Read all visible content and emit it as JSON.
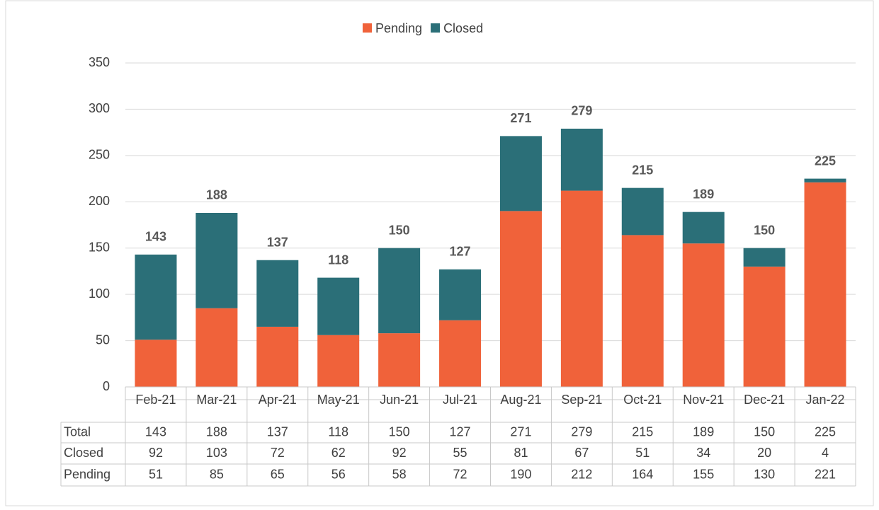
{
  "chart_data": {
    "type": "bar",
    "stacked": true,
    "categories": [
      "Feb-21",
      "Mar-21",
      "Apr-21",
      "May-21",
      "Jun-21",
      "Jul-21",
      "Aug-21",
      "Sep-21",
      "Oct-21",
      "Nov-21",
      "Dec-21",
      "Jan-22"
    ],
    "series": [
      {
        "name": "Pending",
        "color": "#f0623a",
        "values": [
          51,
          85,
          65,
          56,
          58,
          72,
          190,
          212,
          164,
          155,
          130,
          221
        ]
      },
      {
        "name": "Closed",
        "color": "#2b6f78",
        "values": [
          92,
          103,
          72,
          62,
          92,
          55,
          81,
          67,
          51,
          34,
          20,
          4
        ]
      }
    ],
    "total_label": "Total",
    "totals": [
      143,
      188,
      137,
      118,
      150,
      127,
      271,
      279,
      215,
      189,
      150,
      225
    ],
    "ylim": [
      0,
      350
    ],
    "yticks": [
      0,
      50,
      100,
      150,
      200,
      250,
      300,
      350
    ],
    "grid": true,
    "legend": "top"
  }
}
